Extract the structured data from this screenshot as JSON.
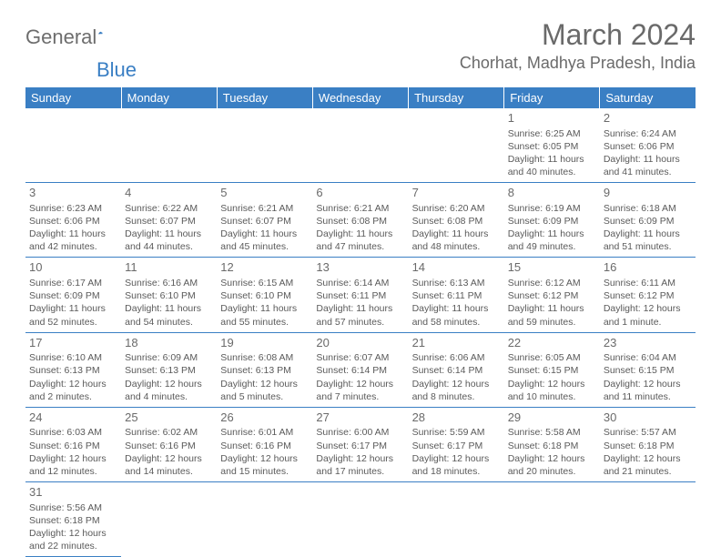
{
  "logo": {
    "part1": "General",
    "part2": "Blue"
  },
  "title": "March 2024",
  "location": "Chorhat, Madhya Pradesh, India",
  "colors": {
    "header_bg": "#3a7fc4",
    "header_text": "#ffffff",
    "text": "#5a5a5a",
    "cell_border": "#3a7fc4",
    "logo_blue": "#3a7fc4",
    "logo_gray": "#6d6d6d"
  },
  "day_headers": [
    "Sunday",
    "Monday",
    "Tuesday",
    "Wednesday",
    "Thursday",
    "Friday",
    "Saturday"
  ],
  "weeks": [
    [
      null,
      null,
      null,
      null,
      null,
      {
        "n": "1",
        "sunrise": "Sunrise: 6:25 AM",
        "sunset": "Sunset: 6:05 PM",
        "daylight": "Daylight: 11 hours and 40 minutes."
      },
      {
        "n": "2",
        "sunrise": "Sunrise: 6:24 AM",
        "sunset": "Sunset: 6:06 PM",
        "daylight": "Daylight: 11 hours and 41 minutes."
      }
    ],
    [
      {
        "n": "3",
        "sunrise": "Sunrise: 6:23 AM",
        "sunset": "Sunset: 6:06 PM",
        "daylight": "Daylight: 11 hours and 42 minutes."
      },
      {
        "n": "4",
        "sunrise": "Sunrise: 6:22 AM",
        "sunset": "Sunset: 6:07 PM",
        "daylight": "Daylight: 11 hours and 44 minutes."
      },
      {
        "n": "5",
        "sunrise": "Sunrise: 6:21 AM",
        "sunset": "Sunset: 6:07 PM",
        "daylight": "Daylight: 11 hours and 45 minutes."
      },
      {
        "n": "6",
        "sunrise": "Sunrise: 6:21 AM",
        "sunset": "Sunset: 6:08 PM",
        "daylight": "Daylight: 11 hours and 47 minutes."
      },
      {
        "n": "7",
        "sunrise": "Sunrise: 6:20 AM",
        "sunset": "Sunset: 6:08 PM",
        "daylight": "Daylight: 11 hours and 48 minutes."
      },
      {
        "n": "8",
        "sunrise": "Sunrise: 6:19 AM",
        "sunset": "Sunset: 6:09 PM",
        "daylight": "Daylight: 11 hours and 49 minutes."
      },
      {
        "n": "9",
        "sunrise": "Sunrise: 6:18 AM",
        "sunset": "Sunset: 6:09 PM",
        "daylight": "Daylight: 11 hours and 51 minutes."
      }
    ],
    [
      {
        "n": "10",
        "sunrise": "Sunrise: 6:17 AM",
        "sunset": "Sunset: 6:09 PM",
        "daylight": "Daylight: 11 hours and 52 minutes."
      },
      {
        "n": "11",
        "sunrise": "Sunrise: 6:16 AM",
        "sunset": "Sunset: 6:10 PM",
        "daylight": "Daylight: 11 hours and 54 minutes."
      },
      {
        "n": "12",
        "sunrise": "Sunrise: 6:15 AM",
        "sunset": "Sunset: 6:10 PM",
        "daylight": "Daylight: 11 hours and 55 minutes."
      },
      {
        "n": "13",
        "sunrise": "Sunrise: 6:14 AM",
        "sunset": "Sunset: 6:11 PM",
        "daylight": "Daylight: 11 hours and 57 minutes."
      },
      {
        "n": "14",
        "sunrise": "Sunrise: 6:13 AM",
        "sunset": "Sunset: 6:11 PM",
        "daylight": "Daylight: 11 hours and 58 minutes."
      },
      {
        "n": "15",
        "sunrise": "Sunrise: 6:12 AM",
        "sunset": "Sunset: 6:12 PM",
        "daylight": "Daylight: 11 hours and 59 minutes."
      },
      {
        "n": "16",
        "sunrise": "Sunrise: 6:11 AM",
        "sunset": "Sunset: 6:12 PM",
        "daylight": "Daylight: 12 hours and 1 minute."
      }
    ],
    [
      {
        "n": "17",
        "sunrise": "Sunrise: 6:10 AM",
        "sunset": "Sunset: 6:13 PM",
        "daylight": "Daylight: 12 hours and 2 minutes."
      },
      {
        "n": "18",
        "sunrise": "Sunrise: 6:09 AM",
        "sunset": "Sunset: 6:13 PM",
        "daylight": "Daylight: 12 hours and 4 minutes."
      },
      {
        "n": "19",
        "sunrise": "Sunrise: 6:08 AM",
        "sunset": "Sunset: 6:13 PM",
        "daylight": "Daylight: 12 hours and 5 minutes."
      },
      {
        "n": "20",
        "sunrise": "Sunrise: 6:07 AM",
        "sunset": "Sunset: 6:14 PM",
        "daylight": "Daylight: 12 hours and 7 minutes."
      },
      {
        "n": "21",
        "sunrise": "Sunrise: 6:06 AM",
        "sunset": "Sunset: 6:14 PM",
        "daylight": "Daylight: 12 hours and 8 minutes."
      },
      {
        "n": "22",
        "sunrise": "Sunrise: 6:05 AM",
        "sunset": "Sunset: 6:15 PM",
        "daylight": "Daylight: 12 hours and 10 minutes."
      },
      {
        "n": "23",
        "sunrise": "Sunrise: 6:04 AM",
        "sunset": "Sunset: 6:15 PM",
        "daylight": "Daylight: 12 hours and 11 minutes."
      }
    ],
    [
      {
        "n": "24",
        "sunrise": "Sunrise: 6:03 AM",
        "sunset": "Sunset: 6:16 PM",
        "daylight": "Daylight: 12 hours and 12 minutes."
      },
      {
        "n": "25",
        "sunrise": "Sunrise: 6:02 AM",
        "sunset": "Sunset: 6:16 PM",
        "daylight": "Daylight: 12 hours and 14 minutes."
      },
      {
        "n": "26",
        "sunrise": "Sunrise: 6:01 AM",
        "sunset": "Sunset: 6:16 PM",
        "daylight": "Daylight: 12 hours and 15 minutes."
      },
      {
        "n": "27",
        "sunrise": "Sunrise: 6:00 AM",
        "sunset": "Sunset: 6:17 PM",
        "daylight": "Daylight: 12 hours and 17 minutes."
      },
      {
        "n": "28",
        "sunrise": "Sunrise: 5:59 AM",
        "sunset": "Sunset: 6:17 PM",
        "daylight": "Daylight: 12 hours and 18 minutes."
      },
      {
        "n": "29",
        "sunrise": "Sunrise: 5:58 AM",
        "sunset": "Sunset: 6:18 PM",
        "daylight": "Daylight: 12 hours and 20 minutes."
      },
      {
        "n": "30",
        "sunrise": "Sunrise: 5:57 AM",
        "sunset": "Sunset: 6:18 PM",
        "daylight": "Daylight: 12 hours and 21 minutes."
      }
    ],
    [
      {
        "n": "31",
        "sunrise": "Sunrise: 5:56 AM",
        "sunset": "Sunset: 6:18 PM",
        "daylight": "Daylight: 12 hours and 22 minutes."
      },
      null,
      null,
      null,
      null,
      null,
      null
    ]
  ]
}
